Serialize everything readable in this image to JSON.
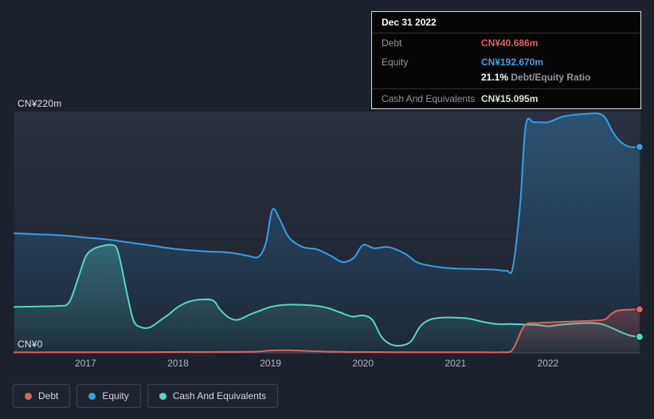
{
  "tooltip": {
    "title": "Dec 31 2022",
    "debt_label": "Debt",
    "debt_value": "CN¥40.686m",
    "debt_value_color": "#e15f5f",
    "equity_label": "Equity",
    "equity_value": "CN¥192.670m",
    "equity_value_color": "#42a6ea",
    "ratio_value": "21.1%",
    "ratio_label": "Debt/Equity Ratio",
    "cash_label": "Cash And Equivalents",
    "cash_value": "CN¥15.095m",
    "cash_value_color": "#d6e4e2"
  },
  "chart_data": {
    "type": "area",
    "x_domain": [
      2016.23,
      2023.0
    ],
    "y_domain": [
      0,
      220
    ],
    "y_axis_labels": {
      "top": "CN¥220m",
      "bottom": "CN¥0"
    },
    "x_ticks": [
      2017,
      2018,
      2019,
      2020,
      2021,
      2022
    ],
    "gridlines": [
      220,
      110,
      0
    ],
    "grid_color": "#2b3342",
    "baseline_color": "#434b5a",
    "legend": [
      {
        "label": "Debt",
        "color": "#e15f5f"
      },
      {
        "label": "Equity",
        "color": "#31a0e8"
      },
      {
        "label": "Cash And Equivalents",
        "color": "#55d6c4"
      }
    ],
    "series": [
      {
        "name": "Equity",
        "color": "#31a0e8",
        "points": [
          [
            2016.23,
            112
          ],
          [
            2016.5,
            111
          ],
          [
            2016.75,
            110
          ],
          [
            2017.0,
            108
          ],
          [
            2017.25,
            106
          ],
          [
            2017.5,
            103
          ],
          [
            2017.75,
            100
          ],
          [
            2018.0,
            97
          ],
          [
            2018.3,
            95
          ],
          [
            2018.55,
            94
          ],
          [
            2018.75,
            91
          ],
          [
            2018.87,
            90
          ],
          [
            2018.95,
            103
          ],
          [
            2019.02,
            134
          ],
          [
            2019.1,
            125
          ],
          [
            2019.2,
            108
          ],
          [
            2019.35,
            99
          ],
          [
            2019.5,
            97
          ],
          [
            2019.65,
            91
          ],
          [
            2019.78,
            85
          ],
          [
            2019.9,
            89
          ],
          [
            2020.0,
            101
          ],
          [
            2020.12,
            98
          ],
          [
            2020.28,
            99
          ],
          [
            2020.45,
            93
          ],
          [
            2020.58,
            85
          ],
          [
            2020.7,
            82
          ],
          [
            2020.85,
            80
          ],
          [
            2021.0,
            79
          ],
          [
            2021.2,
            78.5
          ],
          [
            2021.4,
            78
          ],
          [
            2021.55,
            77
          ],
          [
            2021.62,
            80
          ],
          [
            2021.7,
            140
          ],
          [
            2021.76,
            213
          ],
          [
            2021.85,
            216
          ],
          [
            2022.0,
            216
          ],
          [
            2022.15,
            221
          ],
          [
            2022.3,
            223
          ],
          [
            2022.45,
            224
          ],
          [
            2022.55,
            224
          ],
          [
            2022.62,
            220
          ],
          [
            2022.7,
            207
          ],
          [
            2022.78,
            198
          ],
          [
            2022.88,
            193
          ],
          [
            2022.99,
            192.67
          ]
        ]
      },
      {
        "name": "Cash And Equivalents",
        "color": "#55d6c4",
        "points": [
          [
            2016.23,
            43
          ],
          [
            2016.5,
            43.5
          ],
          [
            2016.7,
            44
          ],
          [
            2016.82,
            47
          ],
          [
            2016.92,
            70
          ],
          [
            2017.0,
            90
          ],
          [
            2017.08,
            97
          ],
          [
            2017.18,
            100
          ],
          [
            2017.28,
            101
          ],
          [
            2017.35,
            95
          ],
          [
            2017.45,
            55
          ],
          [
            2017.52,
            30
          ],
          [
            2017.6,
            24
          ],
          [
            2017.7,
            24
          ],
          [
            2017.8,
            30
          ],
          [
            2017.9,
            36
          ],
          [
            2018.0,
            43
          ],
          [
            2018.12,
            48
          ],
          [
            2018.25,
            50
          ],
          [
            2018.38,
            49
          ],
          [
            2018.45,
            41
          ],
          [
            2018.55,
            33
          ],
          [
            2018.65,
            31
          ],
          [
            2018.78,
            36
          ],
          [
            2018.9,
            40
          ],
          [
            2019.0,
            43
          ],
          [
            2019.15,
            45
          ],
          [
            2019.35,
            45
          ],
          [
            2019.5,
            44
          ],
          [
            2019.62,
            42
          ],
          [
            2019.75,
            38
          ],
          [
            2019.88,
            34
          ],
          [
            2020.0,
            35
          ],
          [
            2020.1,
            31
          ],
          [
            2020.2,
            15
          ],
          [
            2020.3,
            8
          ],
          [
            2020.42,
            7
          ],
          [
            2020.52,
            11
          ],
          [
            2020.62,
            25
          ],
          [
            2020.72,
            31
          ],
          [
            2020.85,
            33
          ],
          [
            2021.0,
            33
          ],
          [
            2021.15,
            32
          ],
          [
            2021.3,
            29
          ],
          [
            2021.45,
            27
          ],
          [
            2021.6,
            27
          ],
          [
            2021.75,
            26.5
          ],
          [
            2021.9,
            26
          ],
          [
            2022.0,
            25
          ],
          [
            2022.15,
            26.5
          ],
          [
            2022.3,
            27.5
          ],
          [
            2022.45,
            28
          ],
          [
            2022.58,
            27
          ],
          [
            2022.7,
            23
          ],
          [
            2022.8,
            19
          ],
          [
            2022.9,
            16
          ],
          [
            2022.99,
            15.095
          ]
        ]
      },
      {
        "name": "Debt",
        "color": "#e15f5f",
        "points": [
          [
            2016.23,
            0.5
          ],
          [
            2016.6,
            0.5
          ],
          [
            2017.0,
            0.6
          ],
          [
            2017.5,
            0.6
          ],
          [
            2018.0,
            0.8
          ],
          [
            2018.5,
            0.9
          ],
          [
            2018.85,
            1.2
          ],
          [
            2019.0,
            2.2
          ],
          [
            2019.2,
            2.4
          ],
          [
            2019.4,
            1.8
          ],
          [
            2019.6,
            1.2
          ],
          [
            2019.8,
            0.9
          ],
          [
            2020.0,
            0.8
          ],
          [
            2020.5,
            0.6
          ],
          [
            2021.0,
            0.5
          ],
          [
            2021.3,
            0.5
          ],
          [
            2021.5,
            0.6
          ],
          [
            2021.6,
            1.5
          ],
          [
            2021.66,
            10
          ],
          [
            2021.72,
            22
          ],
          [
            2021.78,
            27.5
          ],
          [
            2021.9,
            28
          ],
          [
            2022.0,
            28.5
          ],
          [
            2022.15,
            29
          ],
          [
            2022.3,
            29.5
          ],
          [
            2022.45,
            30
          ],
          [
            2022.55,
            30.5
          ],
          [
            2022.62,
            31.5
          ],
          [
            2022.68,
            36
          ],
          [
            2022.75,
            39.5
          ],
          [
            2022.85,
            40.5
          ],
          [
            2022.99,
            40.686
          ]
        ]
      }
    ]
  }
}
